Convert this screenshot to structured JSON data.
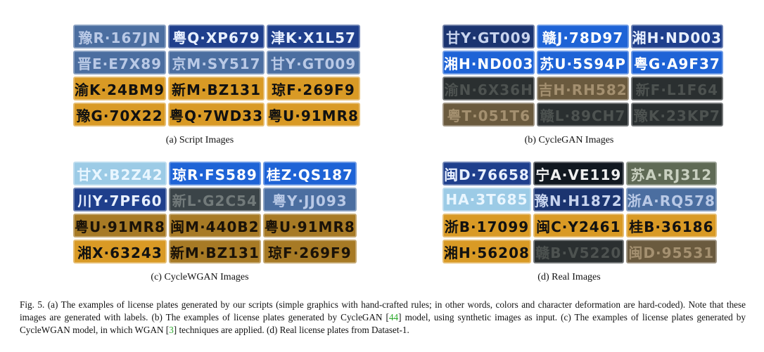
{
  "panels": [
    {
      "caption": "(a) Script Images",
      "plates": [
        {
          "text": "豫R·167JN",
          "style": "blue-faded"
        },
        {
          "text": "粤Q·XP679",
          "style": "blue"
        },
        {
          "text": "津K·X1L57",
          "style": "blue"
        },
        {
          "text": "晋E·E7X89",
          "style": "blue-faded"
        },
        {
          "text": "京M·SY517",
          "style": "blue-faded"
        },
        {
          "text": "甘Y·GT009",
          "style": "blue-faded"
        },
        {
          "text": "渝K·24BM9",
          "style": "yellow"
        },
        {
          "text": "新M·BZ131",
          "style": "yellow"
        },
        {
          "text": "琼F·269F9",
          "style": "yellow"
        },
        {
          "text": "豫G·70X22",
          "style": "yellow"
        },
        {
          "text": "粤Q·7WD33",
          "style": "yellow"
        },
        {
          "text": "粤U·91MR8",
          "style": "yellow"
        }
      ]
    },
    {
      "caption": "(b) CycleGAN Images",
      "plates": [
        {
          "text": "甘Y·GT009",
          "style": "blue-dark"
        },
        {
          "text": "赣J·78D97",
          "style": "blue-bright"
        },
        {
          "text": "湘H·ND003",
          "style": "blue"
        },
        {
          "text": "湘H·ND003",
          "style": "blue-bright"
        },
        {
          "text": "苏U·5S94P",
          "style": "blue-bright"
        },
        {
          "text": "粤G·A9F37",
          "style": "blue-bright"
        },
        {
          "text": "渝N·6X36H",
          "style": "gray-dark"
        },
        {
          "text": "吉H·RH582",
          "style": "brown"
        },
        {
          "text": "新F·L1F64",
          "style": "gray-dark"
        },
        {
          "text": "粤T·051T6",
          "style": "brown"
        },
        {
          "text": "赣L·89CH7",
          "style": "gray-dark"
        },
        {
          "text": "豫K·23KP7",
          "style": "gray-dark"
        }
      ]
    },
    {
      "caption": "(c) CycleWGAN Images",
      "plates": [
        {
          "text": "甘X·B2Z42",
          "style": "blue-light"
        },
        {
          "text": "琼R·FS589",
          "style": "blue-bright"
        },
        {
          "text": "桂Z·QS187",
          "style": "blue-bright"
        },
        {
          "text": "川Y·7PF60",
          "style": "blue"
        },
        {
          "text": "新L·G2C54",
          "style": "gray"
        },
        {
          "text": "粤Y·JJ093",
          "style": "blue-faded"
        },
        {
          "text": "粤U·91MR8",
          "style": "yellow-dark"
        },
        {
          "text": "闽M·440B2",
          "style": "yellow-dark"
        },
        {
          "text": "粤U·91MR8",
          "style": "yellow-dark"
        },
        {
          "text": "湘X·63243",
          "style": "yellow"
        },
        {
          "text": "新M·BZ131",
          "style": "yellow-dark"
        },
        {
          "text": "琼F·269F9",
          "style": "yellow-dark"
        }
      ]
    },
    {
      "caption": "(d) Real Images",
      "plates": [
        {
          "text": "闽D·76658",
          "style": "blue"
        },
        {
          "text": "宁A·VE119",
          "style": "black"
        },
        {
          "text": "苏A·RJ312",
          "style": "green-gray"
        },
        {
          "text": "HA·3T685",
          "style": "blue-light"
        },
        {
          "text": "豫N·H1872",
          "style": "blue-dark"
        },
        {
          "text": "浙A·RQ578",
          "style": "blue-faded"
        },
        {
          "text": "浙B·17099",
          "style": "yellow"
        },
        {
          "text": "闽C·Y2461",
          "style": "yellow"
        },
        {
          "text": "桂B·36186",
          "style": "yellow"
        },
        {
          "text": "湘H·56208",
          "style": "yellow"
        },
        {
          "text": "赣B·V5220",
          "style": "gray-dark"
        },
        {
          "text": "闽D·95531",
          "style": "brown"
        }
      ]
    }
  ],
  "figure_caption": {
    "part1": "Fig. 5.  (a) The examples of license plates generated by our scripts (simple graphics with hand-crafted rules; in other words, colors and character deformation are hard-coded). Note that these images are generated with labels. (b) The examples of license plates generated by CycleGAN [",
    "ref1": "44",
    "part2": "] model, using synthetic images as input. (c) The examples of license plates generated by CycleWGAN model, in which WGAN [",
    "ref2": "3",
    "part3": "] techniques are applied. (d) Real license plates from Dataset-1."
  }
}
